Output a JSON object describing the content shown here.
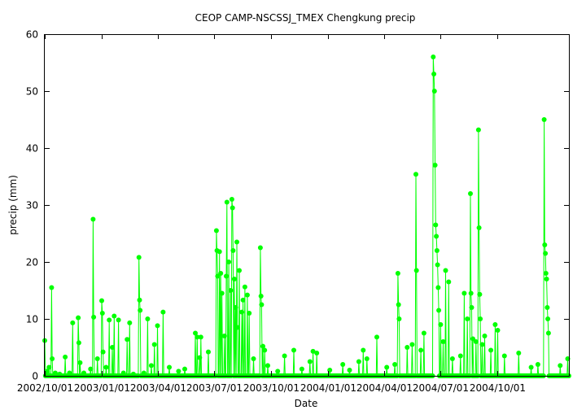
{
  "chart_data": {
    "type": "line",
    "title": "CEOP CAMP-NSCSSJ_TMEX Chengkung  precip",
    "xlabel": "Date",
    "ylabel": "precip (mm)",
    "ylim": [
      0,
      60
    ],
    "yticks": [
      0,
      10,
      20,
      30,
      40,
      50,
      60
    ],
    "xlim": [
      "2002-10-01",
      "2005-01-24"
    ],
    "xticks": [
      {
        "date": "2002-10-01",
        "label": "2002/10/01"
      },
      {
        "date": "2003-01-01",
        "label": "2003/01/01"
      },
      {
        "date": "2003-04-01",
        "label": "2003/04/01"
      },
      {
        "date": "2003-07-01",
        "label": "2003/07/01"
      },
      {
        "date": "2003-10-01",
        "label": "2003/10/01"
      },
      {
        "date": "2004-01-01",
        "label": "2004/01/01"
      },
      {
        "date": "2004-04-01",
        "label": "2004/04/01"
      },
      {
        "date": "2004-07-01",
        "label": "2004/07/01"
      },
      {
        "date": "2004-10-01",
        "label": "2004/10/01"
      }
    ],
    "grid": false,
    "legend": "none",
    "series": [
      {
        "color": "#00ff00",
        "marker": "circle",
        "points": [
          [
            "2002-10-01",
            6.2
          ],
          [
            "2002-10-04",
            0.8
          ],
          [
            "2002-10-08",
            1.5
          ],
          [
            "2002-10-12",
            15.5
          ],
          [
            "2002-10-13",
            3.0
          ],
          [
            "2002-10-18",
            0.5
          ],
          [
            "2002-10-25",
            0.3
          ],
          [
            "2002-11-03",
            3.3
          ],
          [
            "2002-11-10",
            0.5
          ],
          [
            "2002-11-15",
            9.3
          ],
          [
            "2002-11-24",
            10.2
          ],
          [
            "2002-11-25",
            5.8
          ],
          [
            "2002-11-27",
            2.3
          ],
          [
            "2002-12-03",
            0.5
          ],
          [
            "2002-12-14",
            1.2
          ],
          [
            "2002-12-18",
            27.5
          ],
          [
            "2002-12-19",
            10.3
          ],
          [
            "2002-12-25",
            3.0
          ],
          [
            "2003-01-01",
            13.2
          ],
          [
            "2003-01-02",
            11.0
          ],
          [
            "2003-01-03",
            4.2
          ],
          [
            "2003-01-08",
            1.5
          ],
          [
            "2003-01-13",
            9.8
          ],
          [
            "2003-01-18",
            5.0
          ],
          [
            "2003-01-21",
            10.5
          ],
          [
            "2003-01-28",
            9.8
          ],
          [
            "2003-02-05",
            0.5
          ],
          [
            "2003-02-11",
            6.4
          ],
          [
            "2003-02-15",
            9.3
          ],
          [
            "2003-02-21",
            0.3
          ],
          [
            "2003-03-02",
            20.8
          ],
          [
            "2003-03-03",
            13.3
          ],
          [
            "2003-03-04",
            11.5
          ],
          [
            "2003-03-10",
            0.5
          ],
          [
            "2003-03-16",
            10.0
          ],
          [
            "2003-03-22",
            1.8
          ],
          [
            "2003-03-27",
            5.5
          ],
          [
            "2003-04-01",
            8.8
          ],
          [
            "2003-04-10",
            11.2
          ],
          [
            "2003-04-20",
            1.5
          ],
          [
            "2003-05-05",
            0.8
          ],
          [
            "2003-05-15",
            1.2
          ],
          [
            "2003-06-01",
            7.5
          ],
          [
            "2003-06-04",
            6.8
          ],
          [
            "2003-06-08",
            3.2
          ],
          [
            "2003-06-10",
            6.8
          ],
          [
            "2003-06-22",
            4.2
          ],
          [
            "2003-07-05",
            25.5
          ],
          [
            "2003-07-06",
            22.0
          ],
          [
            "2003-07-07",
            17.5
          ],
          [
            "2003-07-10",
            21.8
          ],
          [
            "2003-07-12",
            18.0
          ],
          [
            "2003-07-14",
            14.5
          ],
          [
            "2003-07-18",
            7.0
          ],
          [
            "2003-07-21",
            17.5
          ],
          [
            "2003-07-22",
            30.5
          ],
          [
            "2003-07-25",
            20.0
          ],
          [
            "2003-07-28",
            15.0
          ],
          [
            "2003-07-30",
            31.0
          ],
          [
            "2003-07-31",
            29.5
          ],
          [
            "2003-08-01",
            22.0
          ],
          [
            "2003-08-03",
            17.0
          ],
          [
            "2003-08-05",
            12.0
          ],
          [
            "2003-08-07",
            23.5
          ],
          [
            "2003-08-08",
            8.5
          ],
          [
            "2003-08-11",
            18.5
          ],
          [
            "2003-08-15",
            11.2
          ],
          [
            "2003-08-17",
            13.3
          ],
          [
            "2003-08-20",
            15.6
          ],
          [
            "2003-08-24",
            14.2
          ],
          [
            "2003-08-27",
            11.0
          ],
          [
            "2003-09-03",
            3.0
          ],
          [
            "2003-09-14",
            22.5
          ],
          [
            "2003-09-15",
            14.0
          ],
          [
            "2003-09-16",
            12.5
          ],
          [
            "2003-09-18",
            5.2
          ],
          [
            "2003-09-21",
            4.5
          ],
          [
            "2003-09-26",
            1.8
          ],
          [
            "2003-10-12",
            0.8
          ],
          [
            "2003-10-23",
            3.5
          ],
          [
            "2003-11-07",
            4.5
          ],
          [
            "2003-11-20",
            1.2
          ],
          [
            "2003-12-03",
            2.5
          ],
          [
            "2003-12-08",
            4.3
          ],
          [
            "2003-12-14",
            4.0
          ],
          [
            "2004-01-04",
            1.0
          ],
          [
            "2004-01-25",
            2.0
          ],
          [
            "2004-02-05",
            1.0
          ],
          [
            "2004-02-20",
            2.5
          ],
          [
            "2004-02-27",
            4.5
          ],
          [
            "2004-03-04",
            3.0
          ],
          [
            "2004-03-20",
            6.8
          ],
          [
            "2004-04-05",
            1.5
          ],
          [
            "2004-04-18",
            2.0
          ],
          [
            "2004-04-23",
            18.0
          ],
          [
            "2004-04-24",
            12.5
          ],
          [
            "2004-04-25",
            10.0
          ],
          [
            "2004-05-08",
            5.0
          ],
          [
            "2004-05-16",
            5.5
          ],
          [
            "2004-05-22",
            35.4
          ],
          [
            "2004-05-23",
            18.5
          ],
          [
            "2004-05-30",
            4.5
          ],
          [
            "2004-06-04",
            7.5
          ],
          [
            "2004-06-19",
            56.0
          ],
          [
            "2004-06-20",
            53.0
          ],
          [
            "2004-06-21",
            50.0
          ],
          [
            "2004-06-22",
            37.0
          ],
          [
            "2004-06-23",
            26.5
          ],
          [
            "2004-06-24",
            24.5
          ],
          [
            "2004-06-25",
            22.0
          ],
          [
            "2004-06-26",
            19.5
          ],
          [
            "2004-06-27",
            15.5
          ],
          [
            "2004-06-28",
            11.5
          ],
          [
            "2004-07-01",
            9.0
          ],
          [
            "2004-07-05",
            6.0
          ],
          [
            "2004-07-09",
            18.5
          ],
          [
            "2004-07-14",
            16.5
          ],
          [
            "2004-07-20",
            3.0
          ],
          [
            "2004-08-02",
            3.5
          ],
          [
            "2004-08-08",
            14.5
          ],
          [
            "2004-08-13",
            10.0
          ],
          [
            "2004-08-18",
            32.0
          ],
          [
            "2004-08-19",
            14.5
          ],
          [
            "2004-08-20",
            12.0
          ],
          [
            "2004-08-22",
            6.5
          ],
          [
            "2004-08-27",
            6.0
          ],
          [
            "2004-08-31",
            43.2
          ],
          [
            "2004-09-01",
            26.0
          ],
          [
            "2004-09-02",
            14.3
          ],
          [
            "2004-09-03",
            10.0
          ],
          [
            "2004-09-06",
            5.5
          ],
          [
            "2004-09-10",
            7.0
          ],
          [
            "2004-09-20",
            4.5
          ],
          [
            "2004-09-27",
            9.0
          ],
          [
            "2004-10-01",
            8.0
          ],
          [
            "2004-10-12",
            3.5
          ],
          [
            "2004-11-04",
            4.0
          ],
          [
            "2004-11-24",
            1.5
          ],
          [
            "2004-12-05",
            2.0
          ],
          [
            "2004-12-15",
            45.0
          ],
          [
            "2004-12-16",
            23.0
          ],
          [
            "2004-12-17",
            21.5
          ],
          [
            "2004-12-18",
            18.0
          ],
          [
            "2004-12-19",
            17.0
          ],
          [
            "2004-12-20",
            12.0
          ],
          [
            "2004-12-21",
            10.0
          ],
          [
            "2004-12-22",
            7.5
          ],
          [
            "2005-01-10",
            1.8
          ],
          [
            "2005-01-22",
            3.0
          ]
        ]
      }
    ]
  }
}
